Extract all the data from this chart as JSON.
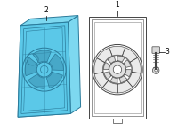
{
  "bg_color": "#ffffff",
  "shroud_fill": "#5bc8e8",
  "shroud_fill_light": "#7dd8f0",
  "shroud_edge": "#2a7a9a",
  "shroud_dark": "#1a5a7a",
  "outline_color": "#444444",
  "outline_light": "#888888",
  "label_color": "#000000",
  "labels": [
    "1",
    "2",
    "3"
  ],
  "figsize": [
    2.0,
    1.47
  ],
  "dpi": 100
}
